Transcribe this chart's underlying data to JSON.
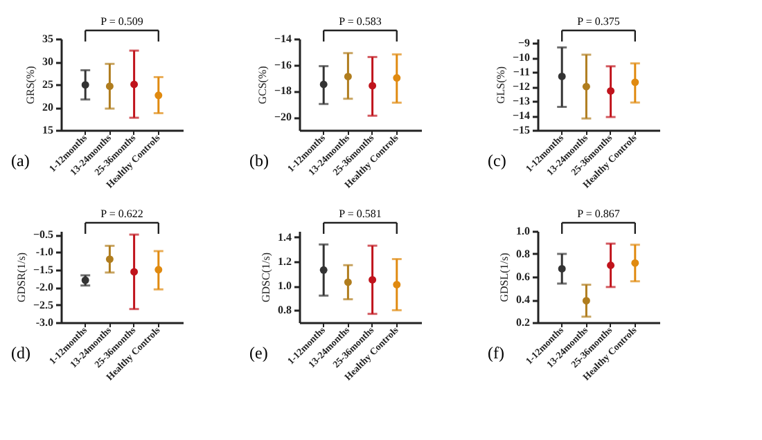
{
  "chart_data": [
    {
      "type": "scatter",
      "ylabel": "GRS(%)",
      "categories": [
        "1-12months",
        "13-24months",
        "25-36months",
        "Healthy Controls"
      ],
      "values": [
        24.9,
        24.6,
        25.0,
        22.6
      ],
      "errors": [
        [
          21.7,
          28.1
        ],
        [
          19.7,
          29.5
        ],
        [
          17.7,
          32.4
        ],
        [
          18.7,
          26.6
        ]
      ],
      "colors": [
        "#333333",
        "#b07d1e",
        "#c0141c",
        "#e08a10"
      ],
      "ylim": [
        15,
        35
      ],
      "yticks": [
        15,
        20,
        25,
        30,
        35
      ],
      "grid": false,
      "marker": "circle",
      "annotations": [
        "(a)",
        "P = 0.509"
      ]
    },
    {
      "type": "scatter",
      "ylabel": "GCS(%)",
      "categories": [
        "1-12months",
        "13-24months",
        "25-36months",
        "Healthy Controls"
      ],
      "values": [
        -17.5,
        -16.9,
        -17.6,
        -17.0
      ],
      "errors": [
        [
          -19.0,
          -16.1
        ],
        [
          -18.6,
          -15.1
        ],
        [
          -19.9,
          -15.4
        ],
        [
          -18.9,
          -15.2
        ]
      ],
      "colors": [
        "#333333",
        "#b07d1e",
        "#c0141c",
        "#e08a10"
      ],
      "ylim": [
        -21,
        -14
      ],
      "yticks": [
        -20,
        -18,
        -16,
        -14
      ],
      "grid": false,
      "marker": "circle",
      "annotations": [
        "(b)",
        "P = 0.583"
      ]
    },
    {
      "type": "scatter",
      "ylabel": "GLS(%)",
      "categories": [
        "1-12months",
        "13-24months",
        "25-36months",
        "Healthy Controls"
      ],
      "values": [
        -11.3,
        -12.0,
        -12.3,
        -11.7
      ],
      "errors": [
        [
          -13.4,
          -9.3
        ],
        [
          -14.2,
          -9.8
        ],
        [
          -14.1,
          -10.6
        ],
        [
          -13.1,
          -10.4
        ]
      ],
      "colors": [
        "#333333",
        "#b07d1e",
        "#c0141c",
        "#e08a10"
      ],
      "ylim": [
        -15,
        -8.7
      ],
      "yticks": [
        -15,
        -14,
        -13,
        -12,
        -11,
        -10,
        -9
      ],
      "grid": false,
      "marker": "circle",
      "annotations": [
        "(c)",
        "P = 0.375"
      ]
    },
    {
      "type": "scatter",
      "ylabel": "GDSR(1/s)",
      "categories": [
        "1-12months",
        "13-24months",
        "25-36months",
        "Healthy Controls"
      ],
      "values": [
        -1.8,
        -1.2,
        -1.56,
        -1.5
      ],
      "errors": [
        [
          -1.95,
          -1.66
        ],
        [
          -1.58,
          -0.82
        ],
        [
          -2.62,
          -0.5
        ],
        [
          -2.06,
          -0.97
        ]
      ],
      "colors": [
        "#333333",
        "#b07d1e",
        "#c0141c",
        "#e08a10"
      ],
      "ylim": [
        -3,
        -0.4
      ],
      "yticks": [
        {
          "value": -3,
          "label": "-3.0"
        },
        -2.5,
        {
          "value": -2,
          "label": "-2.0"
        },
        -1.5,
        {
          "value": -1,
          "label": "-1.0"
        },
        -0.5
      ],
      "grid": false,
      "marker": "circle",
      "annotations": [
        "(d)",
        "P = 0.622"
      ]
    },
    {
      "type": "scatter",
      "ylabel": "GDSC(1/s)",
      "categories": [
        "1-12months",
        "13-24months",
        "25-36months",
        "Healthy Controls"
      ],
      "values": [
        1.13,
        1.03,
        1.05,
        1.01
      ],
      "errors": [
        [
          0.92,
          1.34
        ],
        [
          0.89,
          1.17
        ],
        [
          0.77,
          1.33
        ],
        [
          0.8,
          1.22
        ]
      ],
      "colors": [
        "#333333",
        "#b07d1e",
        "#c0141c",
        "#e08a10"
      ],
      "ylim": [
        0.7,
        1.45
      ],
      "yticks": [
        0.8,
        {
          "value": 1,
          "label": "1.0"
        },
        1.2,
        1.4
      ],
      "grid": false,
      "marker": "circle",
      "annotations": [
        "(e)",
        "P = 0.581"
      ]
    },
    {
      "type": "scatter",
      "ylabel": "GDSL(1/s)",
      "categories": [
        "1-12months",
        "13-24months",
        "25-36months",
        "Healthy Controls"
      ],
      "values": [
        0.67,
        0.39,
        0.7,
        0.72
      ],
      "errors": [
        [
          0.54,
          0.8
        ],
        [
          0.25,
          0.53
        ],
        [
          0.51,
          0.89
        ],
        [
          0.56,
          0.88
        ]
      ],
      "colors": [
        "#333333",
        "#b07d1e",
        "#c0141c",
        "#e08a10"
      ],
      "ylim": [
        0.2,
        1.0
      ],
      "yticks": [
        0.2,
        0.4,
        0.6,
        0.8,
        {
          "value": 1,
          "label": "1.0"
        }
      ],
      "grid": false,
      "marker": "circle",
      "annotations": [
        "(f)",
        "P = 0.867"
      ]
    }
  ]
}
